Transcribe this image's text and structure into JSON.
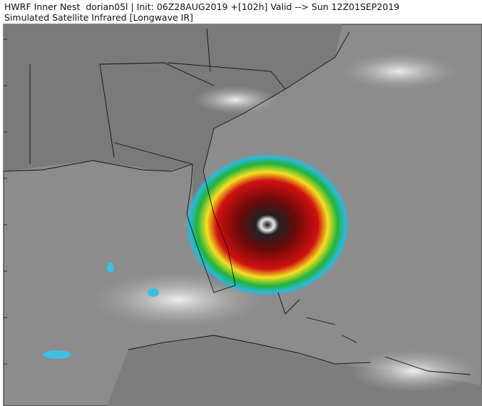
{
  "header": {
    "title": "HWRF Inner Nest  dorian05l | Init: 06Z28AUG2019 +[102h] Valid --> Sun 12Z01SEP2019",
    "subtitle": "Simulated Satellite Infrared [Longwave IR]"
  }
}
